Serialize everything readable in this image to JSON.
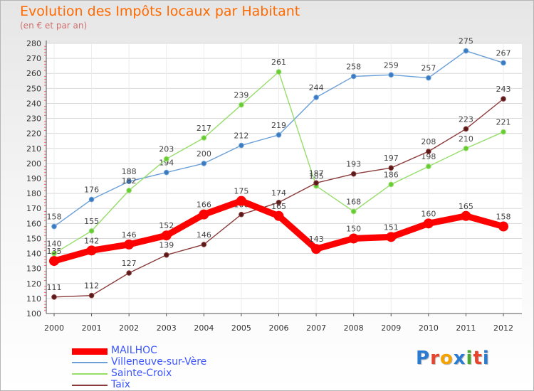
{
  "title": "Evolution des Impôts locaux par Habitant",
  "subtitle": "(en € et par an)",
  "logo": "Proxiti",
  "logo_colors": [
    "#2b7bd0",
    "#e8432c",
    "#f4a300",
    "#2b7bd0",
    "#4aa832",
    "#e8432c",
    "#2b7bd0"
  ],
  "chart_data": {
    "type": "line",
    "title": "Evolution des Impôts locaux par Habitant",
    "subtitle": "(en € et par an)",
    "x": [
      "2000",
      "2001",
      "2002",
      "2003",
      "2004",
      "2005",
      "2006",
      "2007",
      "2008",
      "2009",
      "2010",
      "2011",
      "2012"
    ],
    "ylim": [
      100,
      280
    ],
    "yticks": [
      100,
      110,
      120,
      130,
      140,
      150,
      160,
      170,
      180,
      190,
      200,
      210,
      220,
      230,
      240,
      250,
      260,
      270,
      280
    ],
    "legend_position": "bottom-left",
    "series": [
      {
        "name": "MAILHOC",
        "color": "#ff0000",
        "style": "thick",
        "values": [
          135,
          142,
          146,
          152,
          166,
          175,
          165,
          143,
          150,
          151,
          160,
          165,
          158
        ]
      },
      {
        "name": "Villeneuve-sur-Vère",
        "color": "#6a9fd8",
        "marker": "#3a7ac0",
        "style": "thin",
        "values": [
          158,
          176,
          188,
          194,
          200,
          212,
          219,
          244,
          258,
          259,
          257,
          275,
          267
        ]
      },
      {
        "name": "Sainte-Croix",
        "color": "#96dd6a",
        "marker": "#66cc33",
        "style": "thin",
        "values": [
          140,
          155,
          182,
          203,
          217,
          239,
          261,
          185,
          168,
          186,
          198,
          210,
          221
        ]
      },
      {
        "name": "Taïx",
        "color": "#8a3a3a",
        "marker": "#5a1a1a",
        "style": "thin",
        "values": [
          111,
          112,
          127,
          139,
          146,
          166,
          174,
          187,
          193,
          197,
          208,
          223,
          243
        ]
      }
    ]
  }
}
